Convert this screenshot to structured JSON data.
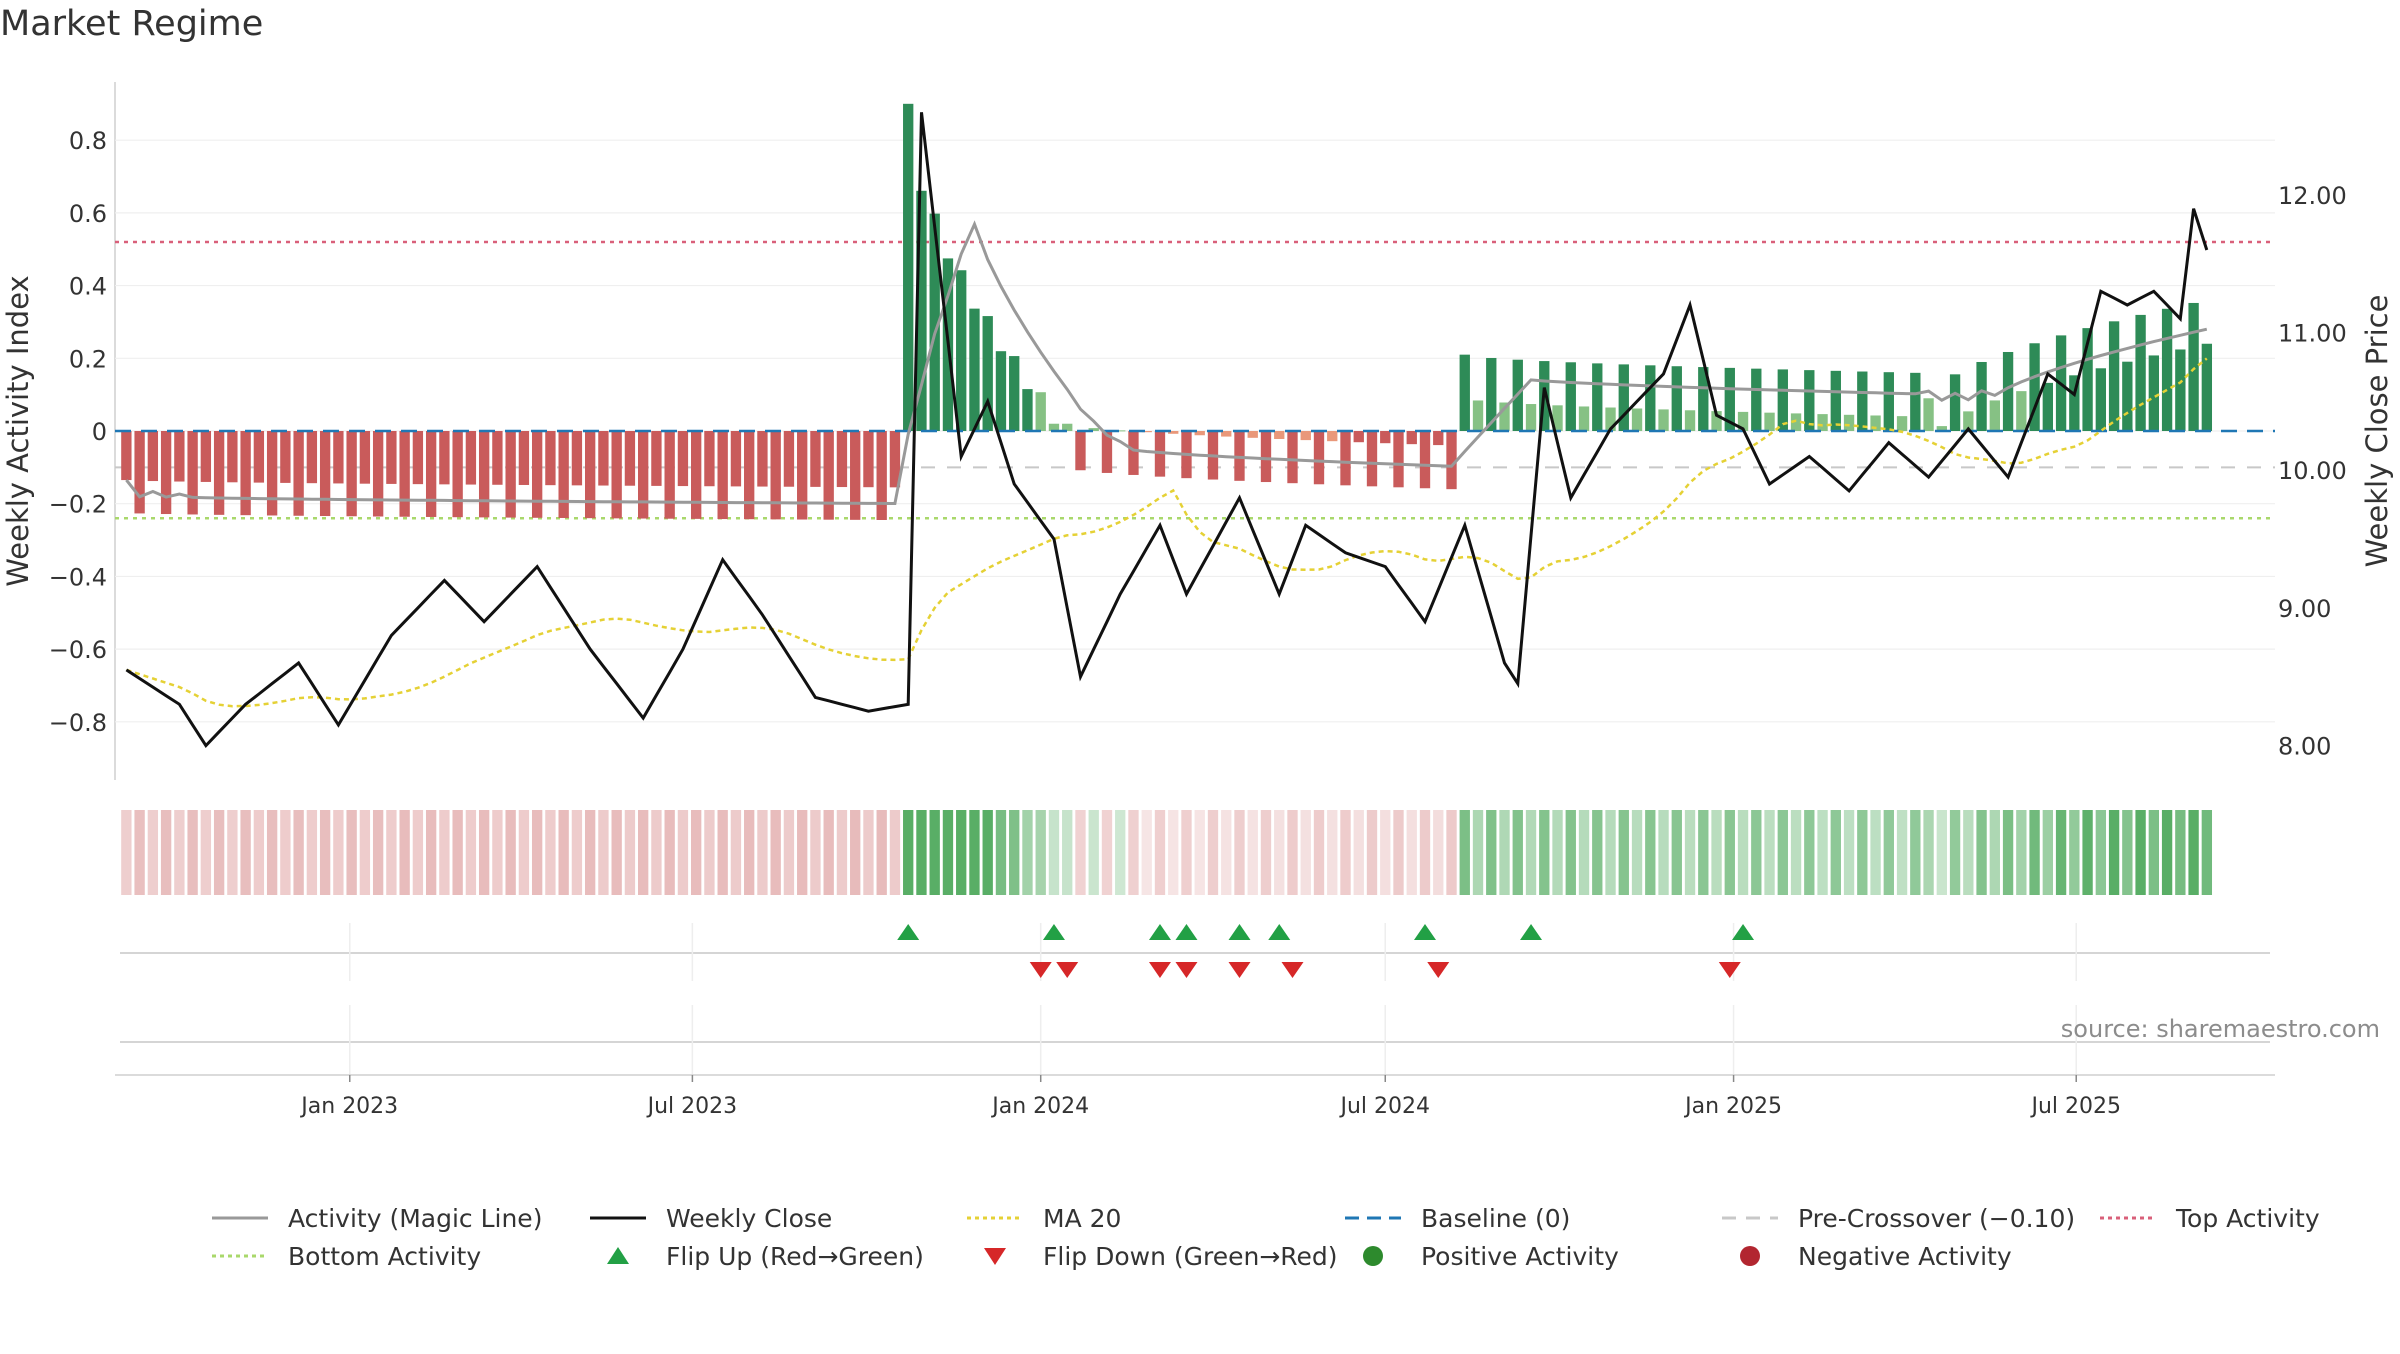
{
  "title": "Market Regime",
  "source": "source: sharemaestro.com",
  "chart_data": {
    "type": "bar+line",
    "start_date": "2022-09-05",
    "weeks": 158,
    "xlim": [
      "2022-08-30",
      "2025-10-14"
    ],
    "x_ticks": [
      {
        "date": "2023-01-01",
        "label": "Jan 2023"
      },
      {
        "date": "2023-07-01",
        "label": "Jul 2023"
      },
      {
        "date": "2024-01-01",
        "label": "Jan 2024"
      },
      {
        "date": "2024-07-01",
        "label": "Jul 2024"
      },
      {
        "date": "2025-01-01",
        "label": "Jan 2025"
      },
      {
        "date": "2025-07-01",
        "label": "Jul 2025"
      }
    ],
    "ylabel_left": "Weekly Activity Index",
    "ylabel_right": "Weekly Close Price",
    "ylim_left": [
      -0.96,
      0.96
    ],
    "ylim_right": [
      7.75,
      12.82
    ],
    "y_ticks_left": [
      "0.8",
      "0.6",
      "0.4",
      "0.2",
      "0",
      "−0.2",
      "−0.4",
      "−0.6",
      "−0.8"
    ],
    "y_ticks_right": [
      "12.00",
      "11.00",
      "10.00",
      "9.00",
      "8.00"
    ],
    "top_activity": 0.52,
    "bottom_activity": -0.24,
    "pre_crossover": -0.1,
    "segments": [
      {
        "len": 59,
        "start": -0.18,
        "end": -0.2,
        "zigzag": 0.045,
        "base": -0.1
      },
      {
        "len": 12,
        "start": 0.88,
        "end": 0.04,
        "zigzag": 0.02,
        "base": 0.1
      },
      {
        "len": 30,
        "start": -0.04,
        "end": -0.1,
        "zigzag": 0.06,
        "base": 0.02
      },
      {
        "len": 35,
        "start": 0.15,
        "end": 0.1,
        "zigzag": 0.06,
        "base": 0.08
      },
      {
        "len": 22,
        "start": 0.03,
        "end": 0.3,
        "zigzag": 0.06,
        "base": 0.12
      }
    ],
    "close": [
      {
        "w": 0,
        "v": 8.55
      },
      {
        "w": 4,
        "v": 8.3
      },
      {
        "w": 6,
        "v": 8.0
      },
      {
        "w": 9,
        "v": 8.3
      },
      {
        "w": 13,
        "v": 8.6
      },
      {
        "w": 16,
        "v": 8.15
      },
      {
        "w": 20,
        "v": 8.8
      },
      {
        "w": 24,
        "v": 9.2
      },
      {
        "w": 27,
        "v": 8.9
      },
      {
        "w": 31,
        "v": 9.3
      },
      {
        "w": 35,
        "v": 8.7
      },
      {
        "w": 39,
        "v": 8.2
      },
      {
        "w": 42,
        "v": 8.7
      },
      {
        "w": 45,
        "v": 9.35
      },
      {
        "w": 48,
        "v": 8.95
      },
      {
        "w": 52,
        "v": 8.35
      },
      {
        "w": 56,
        "v": 8.25
      },
      {
        "w": 59,
        "v": 8.3
      },
      {
        "w": 60,
        "v": 12.6
      },
      {
        "w": 63,
        "v": 10.1
      },
      {
        "w": 65,
        "v": 10.5
      },
      {
        "w": 67,
        "v": 9.9
      },
      {
        "w": 70,
        "v": 9.5
      },
      {
        "w": 72,
        "v": 8.5
      },
      {
        "w": 75,
        "v": 9.1
      },
      {
        "w": 78,
        "v": 9.6
      },
      {
        "w": 80,
        "v": 9.1
      },
      {
        "w": 84,
        "v": 9.8
      },
      {
        "w": 87,
        "v": 9.1
      },
      {
        "w": 89,
        "v": 9.6
      },
      {
        "w": 92,
        "v": 9.4
      },
      {
        "w": 95,
        "v": 9.3
      },
      {
        "w": 98,
        "v": 8.9
      },
      {
        "w": 101,
        "v": 9.6
      },
      {
        "w": 104,
        "v": 8.6
      },
      {
        "w": 105,
        "v": 8.45
      },
      {
        "w": 107,
        "v": 10.6
      },
      {
        "w": 109,
        "v": 9.8
      },
      {
        "w": 112,
        "v": 10.3
      },
      {
        "w": 114,
        "v": 10.5
      },
      {
        "w": 116,
        "v": 10.7
      },
      {
        "w": 118,
        "v": 11.2
      },
      {
        "w": 120,
        "v": 10.4
      },
      {
        "w": 122,
        "v": 10.3
      },
      {
        "w": 124,
        "v": 9.9
      },
      {
        "w": 127,
        "v": 10.1
      },
      {
        "w": 130,
        "v": 9.85
      },
      {
        "w": 133,
        "v": 10.2
      },
      {
        "w": 136,
        "v": 9.95
      },
      {
        "w": 139,
        "v": 10.3
      },
      {
        "w": 142,
        "v": 9.95
      },
      {
        "w": 145,
        "v": 10.7
      },
      {
        "w": 147,
        "v": 10.55
      },
      {
        "w": 149,
        "v": 11.3
      },
      {
        "w": 151,
        "v": 11.2
      },
      {
        "w": 153,
        "v": 11.3
      },
      {
        "w": 155,
        "v": 11.1
      },
      {
        "w": 156,
        "v": 11.9
      },
      {
        "w": 157,
        "v": 11.6
      }
    ],
    "flip_up_weeks": [
      59,
      70,
      78,
      80,
      84,
      87,
      98,
      106,
      122
    ],
    "flip_down_weeks": [
      69,
      71,
      78,
      80,
      84,
      88,
      99,
      121
    ]
  },
  "legend": [
    {
      "key": "activity",
      "label": "Activity (Magic Line)",
      "color": "#999999"
    },
    {
      "key": "close",
      "label": "Weekly Close",
      "color": "#111111"
    },
    {
      "key": "ma20",
      "label": "MA 20",
      "color": "#e5d135"
    },
    {
      "key": "baseline",
      "label": "Baseline (0)",
      "color": "#1f77b4"
    },
    {
      "key": "precross",
      "label": "Pre-Crossover (−0.10)",
      "color": "#c8c8c8"
    },
    {
      "key": "top",
      "label": "Top Activity",
      "color": "#d9607a"
    },
    {
      "key": "bottom",
      "label": "Bottom Activity",
      "color": "#a9d86b"
    },
    {
      "key": "flipup",
      "label": "Flip Up (Red→Green)",
      "color": "#22a045"
    },
    {
      "key": "flipdown",
      "label": "Flip Down (Green→Red)",
      "color": "#d62728"
    },
    {
      "key": "pos",
      "label": "Positive Activity",
      "color": "#2d8a2d"
    },
    {
      "key": "neg",
      "label": "Negative Activity",
      "color": "#b22630"
    }
  ]
}
